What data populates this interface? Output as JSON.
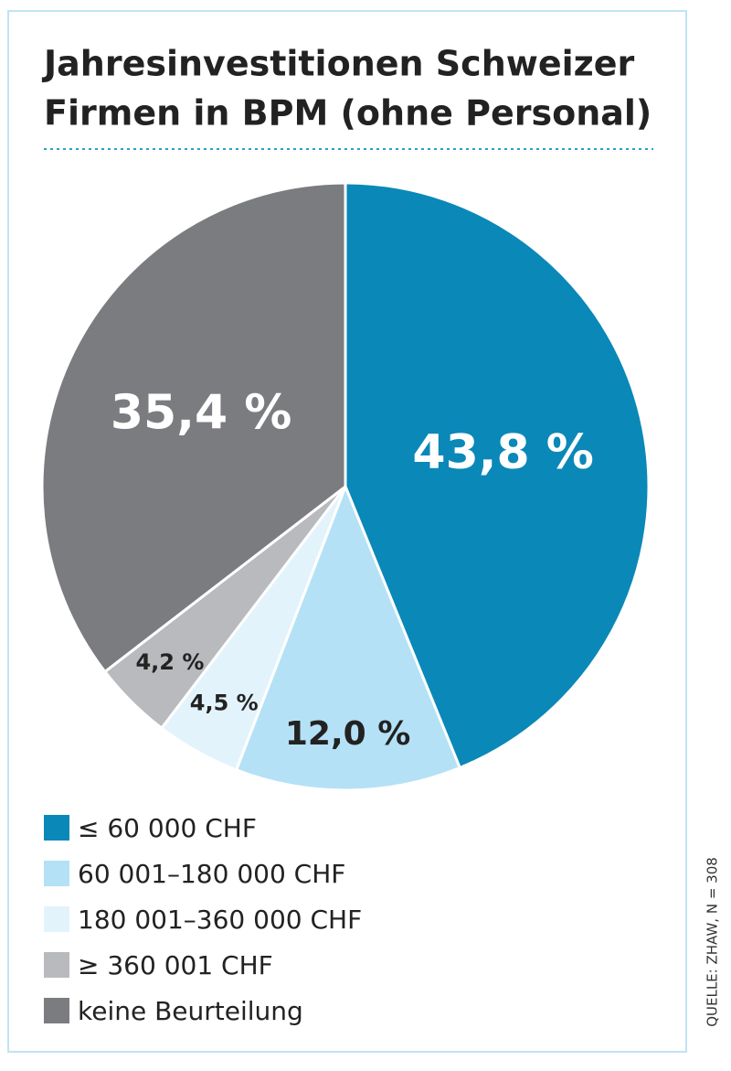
{
  "chart_data": {
    "type": "pie",
    "title": [
      "Jahresinvestitionen Schweizer",
      "Firmen in BPM (ohne Personal)"
    ],
    "categories": [
      "≤ 60 000 CHF",
      "60 001–180 000 CHF",
      "180 001–360 000 CHF",
      "≥ 360 001 CHF",
      "keine Beurteilung"
    ],
    "values": [
      43.8,
      12.0,
      4.5,
      4.2,
      35.4
    ],
    "value_labels": [
      "43,8 %",
      "12,0 %",
      "4,5 %",
      "4,2 %",
      "35,4 %"
    ],
    "colors": [
      "#0a88b8",
      "#b4e1f6",
      "#e2f3fc",
      "#b9babd",
      "#7b7c7f"
    ],
    "source": "QUELLE: ZHAW, N = 308"
  }
}
